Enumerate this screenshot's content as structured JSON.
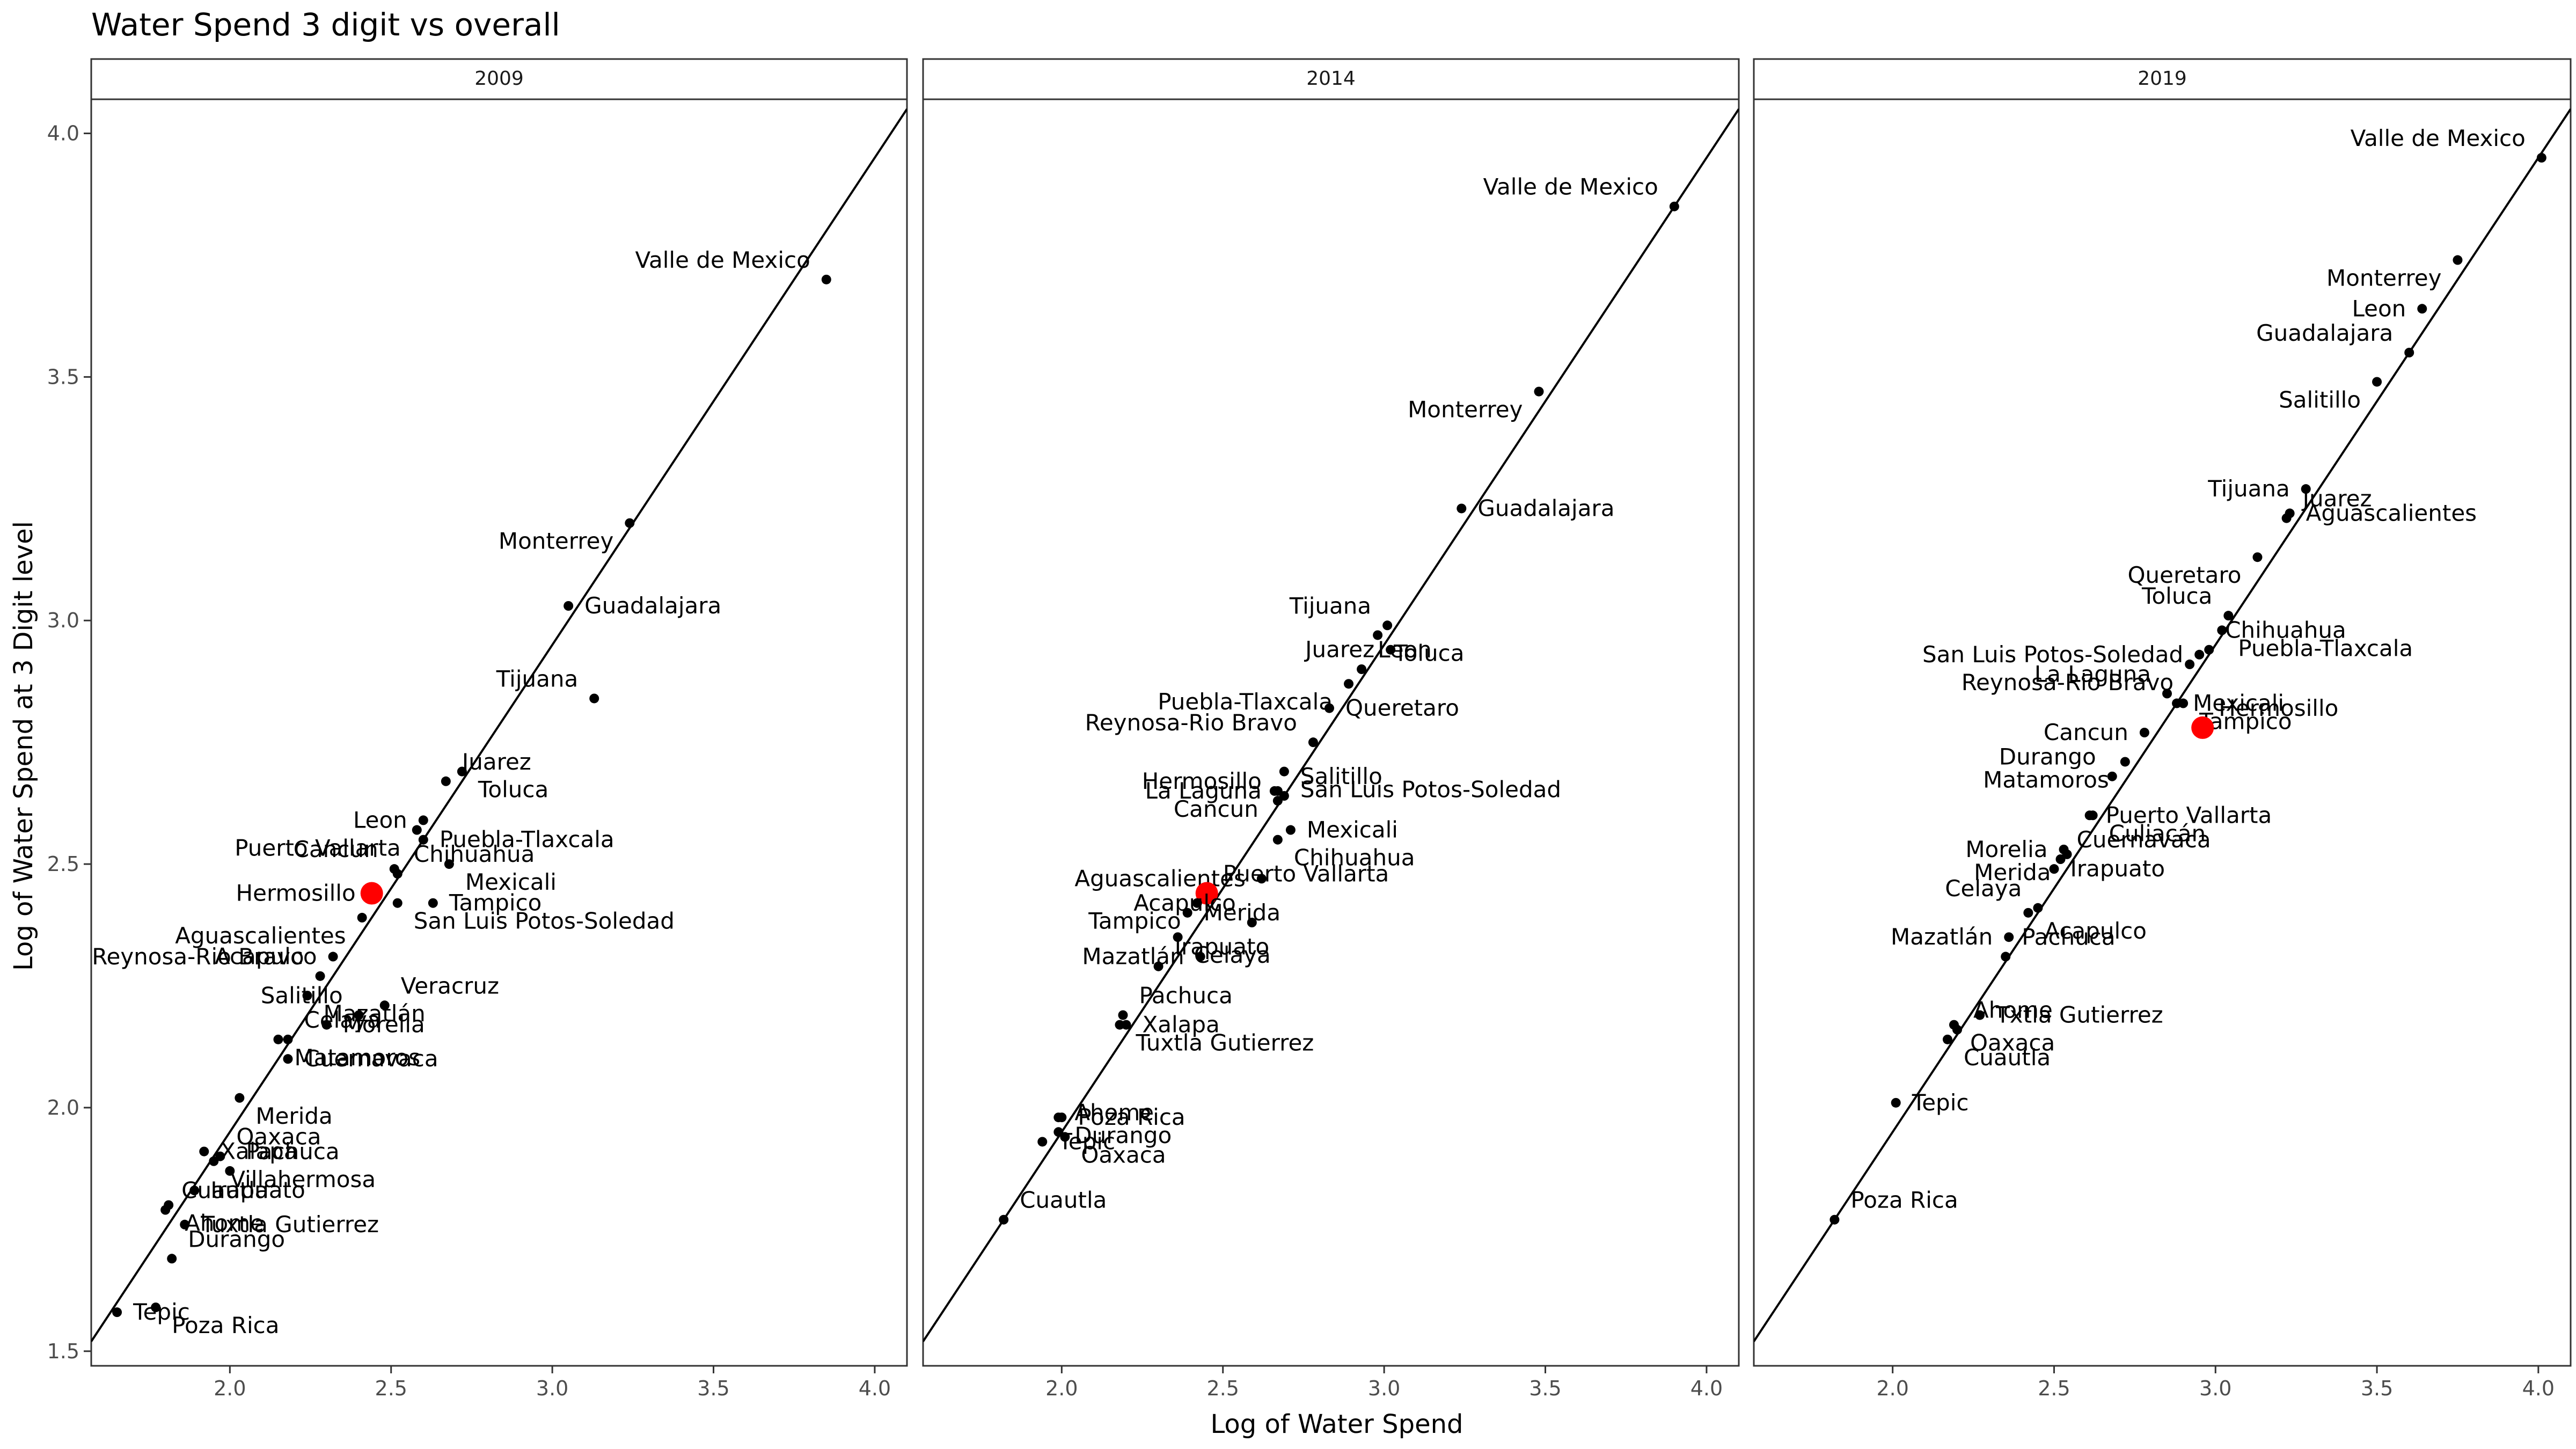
{
  "chart_data": {
    "type": "scatter",
    "title": "Water Spend 3 digit vs overall",
    "xlabel": "Log of Water Spend",
    "ylabel": "Log of Water Spend at 3 Digit level",
    "xlim": [
      1.57,
      4.1
    ],
    "ylim": [
      1.47,
      4.07
    ],
    "x_ticks": [
      "2.0",
      "2.5",
      "3.0",
      "3.5",
      "4.0"
    ],
    "y_ticks": [
      "1.5",
      "2.0",
      "2.5",
      "3.0",
      "3.5",
      "4.0"
    ],
    "reference_line": {
      "slope": 1.0,
      "intercept": -0.05
    },
    "grid": false,
    "highlight_color": "#FF0000",
    "point_color": "#000000",
    "panels": [
      {
        "name": "2009",
        "points": [
          {
            "label": "Valle de Mexico",
            "x": 3.85,
            "y": 3.7
          },
          {
            "label": "Monterrey",
            "x": 3.24,
            "y": 3.2
          },
          {
            "label": "Guadalajara",
            "x": 3.05,
            "y": 3.03
          },
          {
            "label": "Tijuana",
            "x": 3.13,
            "y": 2.84
          },
          {
            "label": "Toluca",
            "x": 2.72,
            "y": 2.69
          },
          {
            "label": "Leon",
            "x": 2.6,
            "y": 2.59
          },
          {
            "label": "Juarez",
            "x": 2.67,
            "y": 2.67
          },
          {
            "label": "Puerto Vallarta",
            "x": 2.58,
            "y": 2.57
          },
          {
            "label": "Puebla-Tlaxcala",
            "x": 2.6,
            "y": 2.55
          },
          {
            "label": "Cancun",
            "x": 2.51,
            "y": 2.49
          },
          {
            "label": "Mexicali",
            "x": 2.68,
            "y": 2.5
          },
          {
            "label": "Hermosillo",
            "x": 2.44,
            "y": 2.44,
            "highlight": true
          },
          {
            "label": "Chihuahua",
            "x": 2.52,
            "y": 2.48
          },
          {
            "label": "Aguascalientes",
            "x": 2.41,
            "y": 2.39
          },
          {
            "label": "Tampico",
            "x": 2.63,
            "y": 2.42
          },
          {
            "label": "Reynosa-Rio Bravo",
            "x": 2.28,
            "y": 2.27
          },
          {
            "label": "San Luis Potos-Soledad",
            "x": 2.52,
            "y": 2.42
          },
          {
            "label": "Acapulco",
            "x": 2.32,
            "y": 2.31
          },
          {
            "label": "Veracruz",
            "x": 2.48,
            "y": 2.21
          },
          {
            "label": "Mazatlán",
            "x": 2.24,
            "y": 2.23
          },
          {
            "label": "Morelia",
            "x": 2.3,
            "y": 2.17
          },
          {
            "label": "Salitillo",
            "x": 2.4,
            "y": 2.19
          },
          {
            "label": "Matamoros",
            "x": 2.15,
            "y": 2.14
          },
          {
            "label": "Cuernavaca",
            "x": 2.18,
            "y": 2.1
          },
          {
            "label": "Celaya",
            "x": 2.18,
            "y": 2.14
          },
          {
            "label": "Merida",
            "x": 2.03,
            "y": 2.02
          },
          {
            "label": "Xalapa",
            "x": 1.92,
            "y": 1.91
          },
          {
            "label": "Oaxaca",
            "x": 1.97,
            "y": 1.9
          },
          {
            "label": "Villahermosa",
            "x": 1.95,
            "y": 1.89
          },
          {
            "label": "Irapuato",
            "x": 1.89,
            "y": 1.83
          },
          {
            "label": "Pachuca",
            "x": 2.0,
            "y": 1.87
          },
          {
            "label": "Ahome",
            "x": 1.81,
            "y": 1.8
          },
          {
            "label": "Tuxtla Gutierrez",
            "x": 1.86,
            "y": 1.76
          },
          {
            "label": "Durango",
            "x": 1.82,
            "y": 1.69
          },
          {
            "label": "Poza Rica",
            "x": 1.77,
            "y": 1.59
          },
          {
            "label": "Tepic",
            "x": 1.65,
            "y": 1.58
          },
          {
            "label": "Cuautla",
            "x": 1.8,
            "y": 1.79
          }
        ]
      },
      {
        "name": "2014",
        "points": [
          {
            "label": "Valle de Mexico",
            "x": 3.9,
            "y": 3.85
          },
          {
            "label": "Monterrey",
            "x": 3.48,
            "y": 3.47
          },
          {
            "label": "Guadalajara",
            "x": 3.24,
            "y": 3.23
          },
          {
            "label": "Tijuana",
            "x": 3.01,
            "y": 2.99
          },
          {
            "label": "Toluca",
            "x": 2.98,
            "y": 2.97
          },
          {
            "label": "Juarez",
            "x": 3.02,
            "y": 2.94
          },
          {
            "label": "Leon",
            "x": 2.93,
            "y": 2.9
          },
          {
            "label": "Puebla-Tlaxcala",
            "x": 2.89,
            "y": 2.87
          },
          {
            "label": "Queretaro",
            "x": 2.83,
            "y": 2.82
          },
          {
            "label": "Reynosa-Rio Bravo",
            "x": 2.78,
            "y": 2.75
          },
          {
            "label": "San Luis Potos-Soledad",
            "x": 2.69,
            "y": 2.69
          },
          {
            "label": "La Laguna",
            "x": 2.67,
            "y": 2.65
          },
          {
            "label": "Salitillo",
            "x": 2.69,
            "y": 2.64
          },
          {
            "label": "Cancun",
            "x": 2.66,
            "y": 2.65
          },
          {
            "label": "Mexicali",
            "x": 2.71,
            "y": 2.57
          },
          {
            "label": "Hermosillo",
            "x": 2.67,
            "y": 2.63
          },
          {
            "label": "Chihuahua",
            "x": 2.67,
            "y": 2.55
          },
          {
            "label": "Aguascalientes",
            "x": 2.62,
            "y": 2.47
          },
          {
            "label": "Puerto Vallarta",
            "x": 2.45,
            "y": 2.44,
            "highlight": true
          },
          {
            "label": "Tampico",
            "x": 2.42,
            "y": 2.42
          },
          {
            "label": "Merida",
            "x": 2.39,
            "y": 2.4
          },
          {
            "label": "Acapulco",
            "x": 2.59,
            "y": 2.38
          },
          {
            "label": "Celaya",
            "x": 2.36,
            "y": 2.35
          },
          {
            "label": "Mazatlán",
            "x": 2.43,
            "y": 2.31
          },
          {
            "label": "Irapuato",
            "x": 2.3,
            "y": 2.29
          },
          {
            "label": "Tuxtla Gutierrez",
            "x": 2.18,
            "y": 2.17
          },
          {
            "label": "Xalapa",
            "x": 2.2,
            "y": 2.17
          },
          {
            "label": "Pachuca",
            "x": 2.19,
            "y": 2.19
          },
          {
            "label": "Durango",
            "x": 1.99,
            "y": 1.98
          },
          {
            "label": "Poza Rica",
            "x": 2.0,
            "y": 1.98
          },
          {
            "label": "Ahome",
            "x": 1.99,
            "y": 1.95
          },
          {
            "label": "Oaxaca",
            "x": 2.01,
            "y": 1.94
          },
          {
            "label": "Tepic",
            "x": 1.94,
            "y": 1.93
          },
          {
            "label": "Cuautla",
            "x": 1.82,
            "y": 1.77
          }
        ]
      },
      {
        "name": "2019",
        "points": [
          {
            "label": "Valle de Mexico",
            "x": 4.01,
            "y": 3.95
          },
          {
            "label": "Monterrey",
            "x": 3.75,
            "y": 3.74
          },
          {
            "label": "Leon",
            "x": 3.64,
            "y": 3.64
          },
          {
            "label": "Guadalajara",
            "x": 3.6,
            "y": 3.55
          },
          {
            "label": "Salitillo",
            "x": 3.5,
            "y": 3.49
          },
          {
            "label": "Tijuana",
            "x": 3.28,
            "y": 3.27
          },
          {
            "label": "Juarez",
            "x": 3.22,
            "y": 3.21
          },
          {
            "label": "Queretaro",
            "x": 3.13,
            "y": 3.13
          },
          {
            "label": "Aguascalientes",
            "x": 3.23,
            "y": 3.22
          },
          {
            "label": "Toluca",
            "x": 3.04,
            "y": 3.01
          },
          {
            "label": "Puebla-Tlaxcala",
            "x": 3.02,
            "y": 2.98
          },
          {
            "label": "San Luis Potos-Soledad",
            "x": 2.95,
            "y": 2.93
          },
          {
            "label": "Chihuahua",
            "x": 2.98,
            "y": 2.94
          },
          {
            "label": "Reynosa-Rio Bravo",
            "x": 2.92,
            "y": 2.91
          },
          {
            "label": "Mexicali",
            "x": 2.88,
            "y": 2.83
          },
          {
            "label": "La Laguna",
            "x": 2.85,
            "y": 2.85
          },
          {
            "label": "Tampico",
            "x": 2.9,
            "y": 2.83
          },
          {
            "label": "Cancun",
            "x": 2.78,
            "y": 2.77
          },
          {
            "label": "Hermosillo",
            "x": 2.96,
            "y": 2.78,
            "highlight": true
          },
          {
            "label": "Matamoros",
            "x": 2.72,
            "y": 2.71
          },
          {
            "label": "Puerto Vallarta",
            "x": 2.61,
            "y": 2.6
          },
          {
            "label": "Durango",
            "x": 2.68,
            "y": 2.68
          },
          {
            "label": "Culiacán",
            "x": 2.62,
            "y": 2.6
          },
          {
            "label": "Morelia",
            "x": 2.53,
            "y": 2.53
          },
          {
            "label": "Cuernavaca",
            "x": 2.52,
            "y": 2.51
          },
          {
            "label": "Merida",
            "x": 2.54,
            "y": 2.52
          },
          {
            "label": "Irapuato",
            "x": 2.5,
            "y": 2.49
          },
          {
            "label": "Celaya",
            "x": 2.45,
            "y": 2.41
          },
          {
            "label": "Acapulco",
            "x": 2.42,
            "y": 2.4
          },
          {
            "label": "Mazatlán",
            "x": 2.36,
            "y": 2.35
          },
          {
            "label": "Pachuca",
            "x": 2.35,
            "y": 2.31
          },
          {
            "label": "Oaxaca",
            "x": 2.19,
            "y": 2.17
          },
          {
            "label": "Txtla Gutierrez",
            "x": 2.27,
            "y": 2.19
          },
          {
            "label": "Ahome",
            "x": 2.2,
            "y": 2.16
          },
          {
            "label": "Cuautla",
            "x": 2.17,
            "y": 2.14
          },
          {
            "label": "Tepic",
            "x": 2.01,
            "y": 2.01
          },
          {
            "label": "Poza Rica",
            "x": 1.82,
            "y": 1.77
          }
        ]
      }
    ]
  }
}
